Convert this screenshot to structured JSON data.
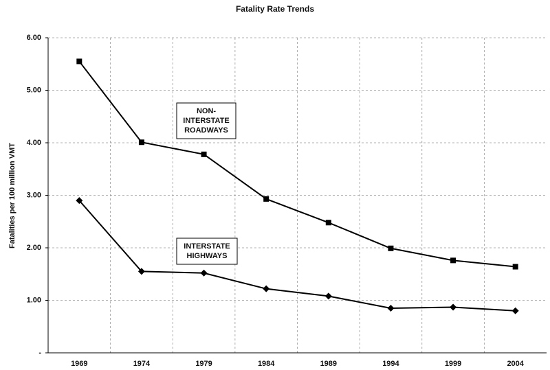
{
  "chart_data": {
    "type": "line",
    "title": "Fatality Rate Trends",
    "y_label": "Fatalities per 100 million VMT",
    "categories": [
      "1969",
      "1974",
      "1979",
      "1984",
      "1989",
      "1994",
      "1999",
      "2004"
    ],
    "series": [
      {
        "name": [
          "NON-",
          "INTERSTATE",
          "ROADWAYS"
        ],
        "color": "#000000",
        "marker": "square",
        "values": [
          5.55,
          4.01,
          3.78,
          2.93,
          2.48,
          1.99,
          1.76,
          1.64
        ]
      },
      {
        "name": [
          "INTERSTATE",
          "HIGHWAYS"
        ],
        "color": "#000000",
        "marker": "diamond",
        "values": [
          2.9,
          1.55,
          1.52,
          1.22,
          1.08,
          0.85,
          0.87,
          0.8
        ]
      }
    ],
    "ylim": [
      0,
      6
    ],
    "yticks": [
      {
        "value": 0,
        "label": "-"
      },
      {
        "value": 1,
        "label": "1.00"
      },
      {
        "value": 2,
        "label": "2.00"
      },
      {
        "value": 3,
        "label": "3.00"
      },
      {
        "value": 4,
        "label": "4.00"
      },
      {
        "value": 5,
        "label": "5.00"
      },
      {
        "value": 6,
        "label": "6.00"
      }
    ],
    "grid": true
  }
}
